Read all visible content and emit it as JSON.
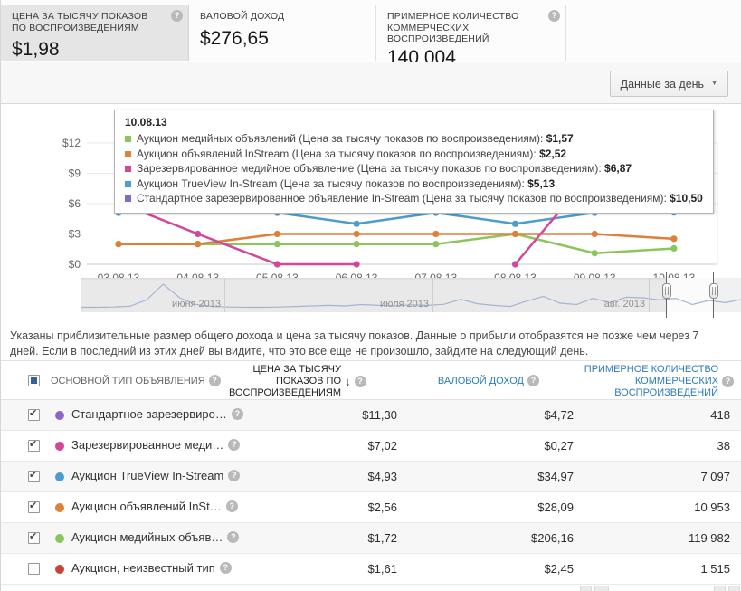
{
  "metric_cards": [
    {
      "label": "ЦЕНА ЗА ТЫСЯЧУ ПОКАЗОВ ПО ВОСПРОИЗВЕДЕНИЯМ",
      "value": "$1,98",
      "selected": true,
      "has_help": true
    },
    {
      "label": "ВАЛОВОЙ ДОХОД",
      "value": "$276,65",
      "selected": false,
      "has_help": false
    },
    {
      "label": "ПРИМЕРНОЕ КОЛИЧЕСТВО КОММЕРЧЕСКИХ ВОСПРОИЗВЕДЕНИЙ",
      "value": "140 004",
      "selected": false,
      "has_help": true
    }
  ],
  "toolbar": {
    "granularity_button": "Данные за день"
  },
  "chart_data": {
    "type": "line",
    "x": [
      "03.08.13",
      "04.08.13",
      "05.08.13",
      "06.08.13",
      "07.08.13",
      "08.08.13",
      "09.08.13",
      "10.08.13"
    ],
    "y_ticks": [
      "$0",
      "$3",
      "$6",
      "$9",
      "$12"
    ],
    "ylim": [
      0,
      13
    ],
    "grid": true,
    "series": [
      {
        "name": "Аукцион медийных объявлений",
        "color": "#8bc65c",
        "values": [
          2.0,
          2.0,
          2.0,
          2.0,
          2.0,
          3.0,
          1.1,
          1.57
        ]
      },
      {
        "name": "Аукцион объявлений InStream",
        "color": "#df7f3a",
        "values": [
          2.0,
          2.0,
          3.0,
          3.0,
          3.0,
          3.0,
          3.0,
          2.52
        ]
      },
      {
        "name": "Аукцион TrueView In-Stream",
        "color": "#4d9ccd",
        "values": [
          5.1,
          6.0,
          5.1,
          4.0,
          5.1,
          4.0,
          5.1,
          5.13
        ]
      },
      {
        "name": "Зарезервированное медийное объявление",
        "color": "#d3479b",
        "values": [
          6.1,
          3.0,
          0.0,
          0.0,
          null,
          0.0,
          9.4,
          6.87
        ]
      },
      {
        "name": "Стандартное зарезервированное объявление In-Stream",
        "color": "#8767c8",
        "values": [
          null,
          null,
          null,
          null,
          null,
          null,
          11.3,
          10.5
        ]
      }
    ]
  },
  "tooltip": {
    "date": "10.08.13",
    "metric_suffix": "(Цена за тысячу показов по воспроизведениям)",
    "items": [
      {
        "label": "Аукцион медийных объявлений (Цена за тысячу показов по воспроизведениям)",
        "value": "$1,57",
        "color": "#8bc65c"
      },
      {
        "label": "Аукцион объявлений InStream (Цена за тысячу показов по воспроизведениям)",
        "value": "$2,52",
        "color": "#df7f3a"
      },
      {
        "label": "Зарезервированное медийное объявление (Цена за тысячу показов по воспроизведениям)",
        "value": "$6,87",
        "color": "#d3479b"
      },
      {
        "label": "Аукцион TrueView In-Stream (Цена за тысячу показов по воспроизведениям)",
        "value": "$5,13",
        "color": "#4d9ccd"
      },
      {
        "label": "Стандартное зарезервированное объявление In-Stream (Цена за тысячу показов по воспроизведениям)",
        "value": "$10,50",
        "color": "#8767c8"
      }
    ]
  },
  "navigator": {
    "months": [
      "июня 2013",
      "июля 2013",
      "авг. 2013"
    ],
    "values": [
      0.5,
      0.5,
      0.6,
      0.9,
      3.2,
      9.0,
      4.0,
      1.5,
      0.8,
      0.6,
      0.5,
      0.5,
      0.6,
      0.8,
      1.0,
      1.2,
      1.0,
      1.5,
      1.2,
      1.0,
      1.4,
      1.2,
      1.6,
      3.4,
      1.8,
      1.2,
      0.8,
      2.8,
      4.5,
      2.0,
      1.5,
      3.8,
      2.2,
      4.2,
      4.0,
      3.2,
      3.8,
      1.5,
      3.0,
      2.2,
      3.4
    ],
    "window": [
      0.885,
      0.956
    ]
  },
  "note": "Указаны приблизительные размер общего дохода и цена за тысячу показов. Данные о прибыли отобразятся не позже чем через 7 дней. Если в последний из этих дней вы видите, что это все еще не произошло, зайдите на следующий день.",
  "table": {
    "columns": [
      {
        "label": "ОСНОВНОЙ ТИП ОБЪЯВЛЕНИЯ",
        "style": "plain"
      },
      {
        "label": "ЦЕНА ЗА ТЫСЯЧУ ПОКАЗОВ ПО ВОСПРОИЗВЕДЕНИЯМ",
        "style": "sorted",
        "sort": "desc"
      },
      {
        "label": "ВАЛОВОЙ ДОХОД",
        "style": "link"
      },
      {
        "label": "ПРИМЕРНОЕ КОЛИЧЕСТВО КОММЕРЧЕСКИХ ВОСПРОИЗВЕДЕНИЙ",
        "style": "link"
      }
    ],
    "rows": [
      {
        "checked": true,
        "color": "#8767c8",
        "name": "Стандартное зарезервиро…",
        "cpm": "$11,30",
        "revenue": "$4,72",
        "plays": "418"
      },
      {
        "checked": true,
        "color": "#d3479b",
        "name": "Зарезервированное меди…",
        "cpm": "$7,02",
        "revenue": "$0,27",
        "plays": "38"
      },
      {
        "checked": true,
        "color": "#4d9ccd",
        "name": "Аукцион TrueView In-Stream",
        "cpm": "$4,93",
        "revenue": "$34,97",
        "plays": "7 097"
      },
      {
        "checked": true,
        "color": "#df7f3a",
        "name": "Аукцион объявлений InSt…",
        "cpm": "$2,56",
        "revenue": "$28,09",
        "plays": "10 953"
      },
      {
        "checked": true,
        "color": "#8bc65c",
        "name": "Аукцион медийных объяв…",
        "cpm": "$1,72",
        "revenue": "$206,16",
        "plays": "119 982"
      },
      {
        "checked": false,
        "color": "#c9423a",
        "name": "Аукцион, неизвестный тип",
        "cpm": "$1,61",
        "revenue": "$2,45",
        "plays": "1 515"
      }
    ]
  }
}
